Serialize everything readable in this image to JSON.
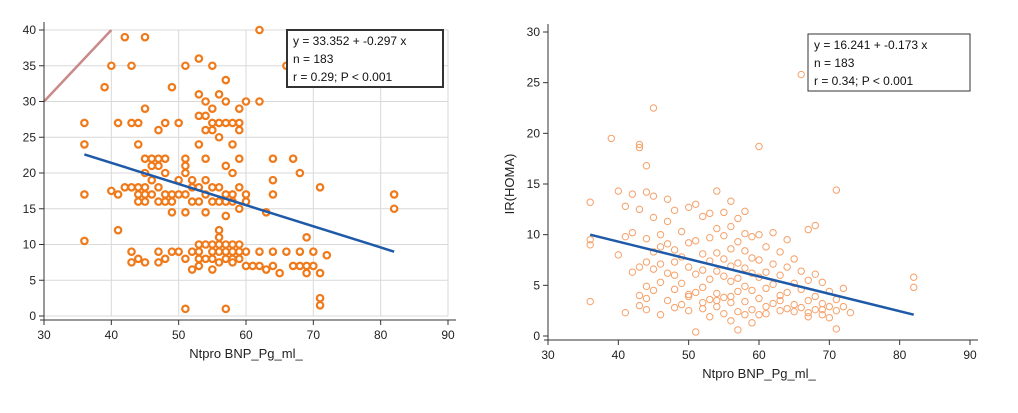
{
  "chart_data": [
    {
      "type": "scatter",
      "xlabel": "Ntpro BNP_Pg_ml_",
      "ylabel": "",
      "xlim": [
        30,
        90
      ],
      "ylim": [
        0,
        40
      ],
      "xticks": [
        30,
        40,
        50,
        60,
        70,
        80,
        90
      ],
      "yticks": [
        0,
        5,
        10,
        15,
        20,
        25,
        30,
        35,
        40
      ],
      "grid": true,
      "marker": "ring-filled",
      "point_color": "#f07a1a",
      "line_color": "#1f5aa8",
      "stats": [
        "y = 33.352 + -0.297 x",
        "n = 183",
        "r = 0.29; P < 0.001"
      ],
      "regression": {
        "x": [
          36,
          82
        ],
        "y": [
          22.6,
          9.0
        ]
      },
      "extra_line": {
        "x": [
          30,
          40
        ],
        "y": [
          30,
          40
        ],
        "color": "#c98a8a"
      },
      "points": [
        [
          36,
          27
        ],
        [
          36,
          24
        ],
        [
          36,
          17
        ],
        [
          36,
          10.5
        ],
        [
          39,
          32
        ],
        [
          40,
          35
        ],
        [
          40,
          17.5
        ],
        [
          41,
          27
        ],
        [
          41,
          17
        ],
        [
          41,
          12
        ],
        [
          42,
          39
        ],
        [
          42,
          18
        ],
        [
          43,
          35
        ],
        [
          43,
          27
        ],
        [
          43,
          18
        ],
        [
          43,
          9
        ],
        [
          43,
          7.5
        ],
        [
          44,
          27
        ],
        [
          44,
          24
        ],
        [
          44,
          18
        ],
        [
          44,
          17
        ],
        [
          44,
          16
        ],
        [
          44,
          8
        ],
        [
          45,
          39
        ],
        [
          45,
          29
        ],
        [
          45,
          22
        ],
        [
          45,
          20
        ],
        [
          45,
          18
        ],
        [
          45,
          17
        ],
        [
          45,
          16
        ],
        [
          45,
          7.5
        ],
        [
          46,
          22
        ],
        [
          46,
          21
        ],
        [
          46,
          19
        ],
        [
          46,
          17
        ],
        [
          47,
          26
        ],
        [
          47,
          22
        ],
        [
          47,
          21
        ],
        [
          47,
          18
        ],
        [
          47,
          16
        ],
        [
          47,
          9
        ],
        [
          47,
          7.5
        ],
        [
          48,
          27
        ],
        [
          48,
          22
        ],
        [
          48,
          20
        ],
        [
          48,
          17
        ],
        [
          48,
          16
        ],
        [
          48,
          8
        ],
        [
          49,
          32
        ],
        [
          49,
          17
        ],
        [
          49,
          16
        ],
        [
          49,
          14.5
        ],
        [
          49,
          9
        ],
        [
          50,
          27
        ],
        [
          50,
          19
        ],
        [
          50,
          17
        ],
        [
          50,
          9
        ],
        [
          51,
          35
        ],
        [
          51,
          22
        ],
        [
          51,
          21
        ],
        [
          51,
          20
        ],
        [
          51,
          17
        ],
        [
          51,
          14.5
        ],
        [
          51,
          8
        ],
        [
          51,
          1
        ],
        [
          52,
          19
        ],
        [
          52,
          18
        ],
        [
          52,
          16
        ],
        [
          52,
          9
        ],
        [
          52,
          6.5
        ],
        [
          53,
          36
        ],
        [
          53,
          31
        ],
        [
          53,
          28
        ],
        [
          53,
          24
        ],
        [
          53,
          18
        ],
        [
          53,
          16
        ],
        [
          53,
          10
        ],
        [
          53,
          9
        ],
        [
          53,
          8
        ],
        [
          53,
          7
        ],
        [
          54,
          30
        ],
        [
          54,
          28
        ],
        [
          54,
          26
        ],
        [
          54,
          22
        ],
        [
          54,
          19
        ],
        [
          54,
          17
        ],
        [
          54,
          14.5
        ],
        [
          54,
          10
        ],
        [
          54,
          8
        ],
        [
          55,
          35
        ],
        [
          55,
          29
        ],
        [
          55,
          27
        ],
        [
          55,
          26
        ],
        [
          55,
          18
        ],
        [
          55,
          16
        ],
        [
          55,
          10
        ],
        [
          55,
          9
        ],
        [
          55,
          8
        ],
        [
          55,
          6.5
        ],
        [
          56,
          31
        ],
        [
          56,
          27
        ],
        [
          56,
          25
        ],
        [
          56,
          18
        ],
        [
          56,
          16
        ],
        [
          56,
          12
        ],
        [
          56,
          11
        ],
        [
          56,
          10
        ],
        [
          56,
          9
        ],
        [
          56,
          7.5
        ],
        [
          57,
          33
        ],
        [
          57,
          30
        ],
        [
          57,
          27
        ],
        [
          57,
          21
        ],
        [
          57,
          17
        ],
        [
          57,
          16
        ],
        [
          57,
          14
        ],
        [
          57,
          10
        ],
        [
          57,
          9
        ],
        [
          57,
          8
        ],
        [
          57,
          1
        ],
        [
          58,
          27
        ],
        [
          58,
          24
        ],
        [
          58,
          20
        ],
        [
          58,
          17
        ],
        [
          58,
          16
        ],
        [
          58,
          10
        ],
        [
          58,
          9
        ],
        [
          58,
          8
        ],
        [
          58,
          7.5
        ],
        [
          59,
          29
        ],
        [
          59,
          27
        ],
        [
          59,
          26
        ],
        [
          59,
          22
        ],
        [
          59,
          18
        ],
        [
          59,
          15
        ],
        [
          59,
          10
        ],
        [
          59,
          9
        ],
        [
          59,
          8
        ],
        [
          60,
          30
        ],
        [
          60,
          17
        ],
        [
          60,
          16
        ],
        [
          60,
          9
        ],
        [
          60,
          7
        ],
        [
          61,
          7
        ],
        [
          62,
          40
        ],
        [
          62,
          30
        ],
        [
          62,
          9
        ],
        [
          62,
          7
        ],
        [
          63,
          14.5
        ],
        [
          63,
          6.5
        ],
        [
          64,
          22
        ],
        [
          64,
          19
        ],
        [
          64,
          17
        ],
        [
          64,
          9
        ],
        [
          64,
          7
        ],
        [
          65,
          6
        ],
        [
          66,
          35
        ],
        [
          66,
          9
        ],
        [
          67,
          22
        ],
        [
          67,
          7
        ],
        [
          68,
          20
        ],
        [
          68,
          9
        ],
        [
          68,
          7
        ],
        [
          69,
          11
        ],
        [
          69,
          7
        ],
        [
          69,
          6
        ],
        [
          70,
          7
        ],
        [
          70,
          9
        ],
        [
          71,
          18
        ],
        [
          71,
          2.5
        ],
        [
          71,
          1.5
        ],
        [
          71,
          6
        ],
        [
          72,
          8.5
        ],
        [
          82,
          17
        ],
        [
          82,
          15
        ]
      ]
    },
    {
      "type": "scatter",
      "xlabel": "Ntpro BNP_Pg_ml_",
      "ylabel": "IR(HOMA)",
      "xlim": [
        30,
        90
      ],
      "ylim": [
        0,
        30
      ],
      "xticks": [
        30,
        40,
        50,
        60,
        70,
        80,
        90
      ],
      "yticks": [
        0,
        5,
        10,
        15,
        20,
        25,
        30
      ],
      "grid": false,
      "marker": "ring-hollow",
      "point_color": "#f5a16a",
      "line_color": "#1f5aa8",
      "stats": [
        "y = 16.241 + -0.173 x",
        "n = 183",
        "r = 0.34; P < 0.001"
      ],
      "regression": {
        "x": [
          36,
          82
        ],
        "y": [
          10.0,
          2.1
        ]
      },
      "points": [
        [
          36,
          13.2
        ],
        [
          36,
          9.5
        ],
        [
          36,
          9
        ],
        [
          36,
          3.4
        ],
        [
          39,
          19.5
        ],
        [
          40,
          14.3
        ],
        [
          40,
          8
        ],
        [
          41,
          12.8
        ],
        [
          41,
          9.8
        ],
        [
          41,
          2.3
        ],
        [
          42,
          14
        ],
        [
          42,
          10.2
        ],
        [
          42,
          6.3
        ],
        [
          43,
          18.9
        ],
        [
          43,
          18.6
        ],
        [
          43,
          12.5
        ],
        [
          43,
          4
        ],
        [
          43,
          3
        ],
        [
          44,
          16.8
        ],
        [
          44,
          14.2
        ],
        [
          44,
          9.6
        ],
        [
          44,
          7.3
        ],
        [
          44,
          4.9
        ],
        [
          44,
          2.6
        ],
        [
          45,
          22.5
        ],
        [
          45,
          13.8
        ],
        [
          45,
          11.7
        ],
        [
          45,
          8.3
        ],
        [
          45,
          6.6
        ],
        [
          45,
          4.5
        ],
        [
          46,
          10
        ],
        [
          46,
          8.8
        ],
        [
          46,
          7.1
        ],
        [
          46,
          5.3
        ],
        [
          46,
          2.1
        ],
        [
          47,
          13.5
        ],
        [
          47,
          9.1
        ],
        [
          47,
          6.2
        ],
        [
          47,
          3.5
        ],
        [
          48,
          12.4
        ],
        [
          48,
          8.5
        ],
        [
          48,
          6
        ],
        [
          48,
          4.6
        ],
        [
          48,
          2.8
        ],
        [
          49,
          10.3
        ],
        [
          49,
          7.8
        ],
        [
          49,
          5.2
        ],
        [
          49,
          3.1
        ],
        [
          50,
          12.7
        ],
        [
          50,
          9.2
        ],
        [
          50,
          6.8
        ],
        [
          50,
          4.1
        ],
        [
          50,
          2.5
        ],
        [
          51,
          13
        ],
        [
          51,
          9.4
        ],
        [
          51,
          6.1
        ],
        [
          51,
          4.3
        ],
        [
          51,
          0.4
        ],
        [
          52,
          11.8
        ],
        [
          52,
          8.1
        ],
        [
          52,
          6.5
        ],
        [
          52,
          4.8
        ],
        [
          52,
          2.7
        ],
        [
          53,
          12.1
        ],
        [
          53,
          9.7
        ],
        [
          53,
          7.4
        ],
        [
          53,
          5.6
        ],
        [
          53,
          3.6
        ],
        [
          53,
          1.9
        ],
        [
          54,
          14.3
        ],
        [
          54,
          10.6
        ],
        [
          54,
          8.2
        ],
        [
          54,
          6.4
        ],
        [
          54,
          4.2
        ],
        [
          54,
          2.9
        ],
        [
          55,
          12.2
        ],
        [
          55,
          9.9
        ],
        [
          55,
          7.6
        ],
        [
          55,
          5.9
        ],
        [
          55,
          3.8
        ],
        [
          55,
          2.2
        ],
        [
          56,
          13.3
        ],
        [
          56,
          10.8
        ],
        [
          56,
          8.6
        ],
        [
          56,
          6.9
        ],
        [
          56,
          5.4
        ],
        [
          56,
          3.3
        ],
        [
          56,
          1.5
        ],
        [
          57,
          11.6
        ],
        [
          57,
          9.3
        ],
        [
          57,
          7.2
        ],
        [
          57,
          5.7
        ],
        [
          57,
          4.4
        ],
        [
          57,
          2.4
        ],
        [
          57,
          0.6
        ],
        [
          58,
          12.3
        ],
        [
          58,
          10.1
        ],
        [
          58,
          8.4
        ],
        [
          58,
          6.7
        ],
        [
          58,
          4.9
        ],
        [
          58,
          3.4
        ],
        [
          59,
          9.8
        ],
        [
          59,
          7.7
        ],
        [
          59,
          6.2
        ],
        [
          59,
          4.5
        ],
        [
          59,
          2.6
        ],
        [
          60,
          18.7
        ],
        [
          60,
          10
        ],
        [
          60,
          7.5
        ],
        [
          60,
          5.8
        ],
        [
          60,
          3.7
        ],
        [
          60,
          2.1
        ],
        [
          61,
          8.8
        ],
        [
          61,
          6.3
        ],
        [
          61,
          4.7
        ],
        [
          61,
          2.9
        ],
        [
          62,
          10.2
        ],
        [
          62,
          7.1
        ],
        [
          62,
          5.1
        ],
        [
          62,
          3.2
        ],
        [
          63,
          8.3
        ],
        [
          63,
          6
        ],
        [
          63,
          4
        ],
        [
          63,
          2.5
        ],
        [
          64,
          9.5
        ],
        [
          64,
          6.8
        ],
        [
          64,
          4.3
        ],
        [
          64,
          2.7
        ],
        [
          65,
          7.6
        ],
        [
          65,
          5.2
        ],
        [
          65,
          3.1
        ],
        [
          66,
          25.8
        ],
        [
          66,
          6.4
        ],
        [
          66,
          4.6
        ],
        [
          66,
          2.8
        ],
        [
          67,
          10.5
        ],
        [
          67,
          5.5
        ],
        [
          67,
          3.5
        ],
        [
          67,
          2.3
        ],
        [
          68,
          10.9
        ],
        [
          68,
          6.1
        ],
        [
          68,
          3.9
        ],
        [
          68,
          2.6
        ],
        [
          69,
          5.3
        ],
        [
          69,
          3.2
        ],
        [
          69,
          2.1
        ],
        [
          70,
          4.4
        ],
        [
          70,
          2.9
        ],
        [
          70,
          1.8
        ],
        [
          71,
          14.4
        ],
        [
          71,
          3.6
        ],
        [
          71,
          2.5
        ],
        [
          71,
          0.7
        ],
        [
          72,
          4.7
        ],
        [
          72,
          2.9
        ],
        [
          82,
          5.8
        ],
        [
          82,
          4.8
        ],
        [
          44,
          3.7
        ],
        [
          47,
          11.3
        ],
        [
          50,
          3.9
        ],
        [
          52,
          3.3
        ],
        [
          54,
          3.5
        ],
        [
          56,
          3.9
        ],
        [
          58,
          2.1
        ],
        [
          59,
          1.3
        ],
        [
          61,
          2.2
        ],
        [
          63,
          3.5
        ],
        [
          65,
          2.4
        ],
        [
          67,
          1.9
        ],
        [
          69,
          2.6
        ],
        [
          73,
          2.3
        ],
        [
          43,
          6.8
        ],
        [
          48,
          7.3
        ]
      ]
    }
  ]
}
